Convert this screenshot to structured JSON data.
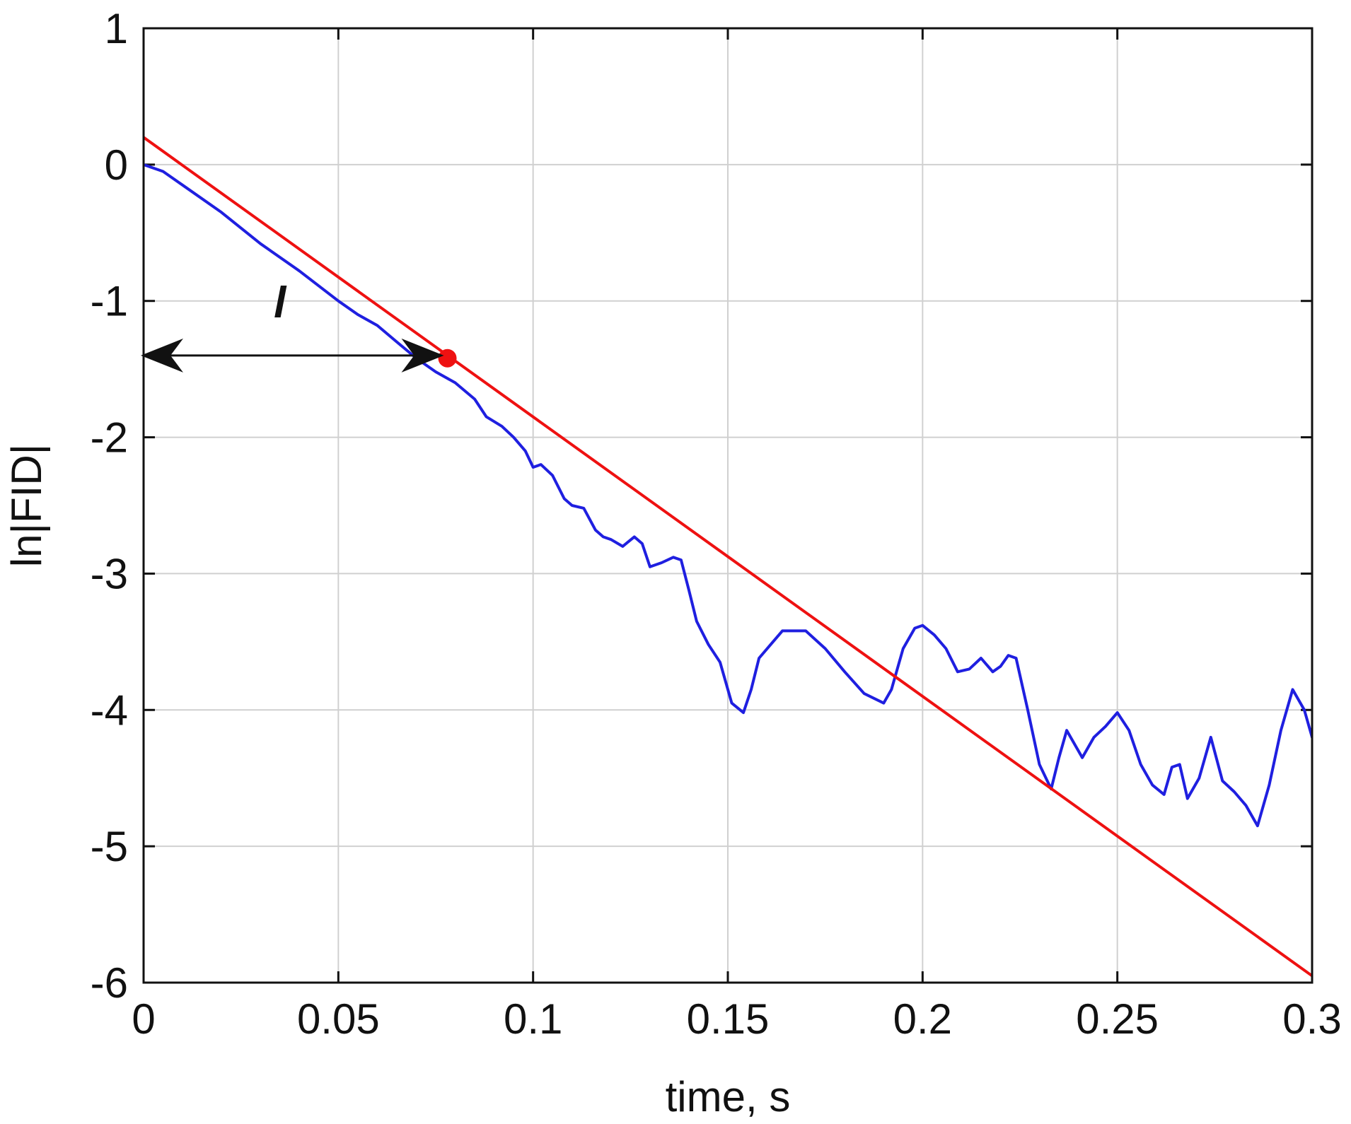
{
  "chart_data": {
    "type": "line",
    "title": "",
    "xlabel": "time, s",
    "ylabel": "ln|FID|",
    "xlim": [
      0,
      0.3
    ],
    "ylim": [
      -6,
      1
    ],
    "grid": true,
    "x_ticks": [
      0,
      0.05,
      0.1,
      0.15,
      0.2,
      0.25,
      0.3
    ],
    "x_tick_labels": [
      "0",
      "0.05",
      "0.1",
      "0.15",
      "0.2",
      "0.25",
      "0.3"
    ],
    "y_ticks": [
      1,
      0,
      -1,
      -2,
      -3,
      -4,
      -5,
      -6
    ],
    "y_tick_labels": [
      "1",
      "0",
      "-1",
      "-2",
      "-3",
      "-4",
      "-5",
      "-6"
    ],
    "series": [
      {
        "color": "#1f1fe0",
        "x": [
          0,
          0.005,
          0.01,
          0.02,
          0.03,
          0.04,
          0.05,
          0.055,
          0.06,
          0.065,
          0.07,
          0.075,
          0.08,
          0.085,
          0.088,
          0.092,
          0.095,
          0.098,
          0.1,
          0.102,
          0.105,
          0.108,
          0.11,
          0.113,
          0.116,
          0.118,
          0.12,
          0.123,
          0.126,
          0.128,
          0.13,
          0.133,
          0.136,
          0.138,
          0.14,
          0.142,
          0.145,
          0.148,
          0.151,
          0.154,
          0.156,
          0.158,
          0.161,
          0.164,
          0.167,
          0.17,
          0.175,
          0.18,
          0.185,
          0.19,
          0.192,
          0.195,
          0.198,
          0.2,
          0.203,
          0.206,
          0.209,
          0.212,
          0.215,
          0.218,
          0.22,
          0.222,
          0.224,
          0.227,
          0.23,
          0.233,
          0.235,
          0.237,
          0.239,
          0.241,
          0.244,
          0.247,
          0.25,
          0.253,
          0.256,
          0.259,
          0.262,
          0.264,
          0.266,
          0.268,
          0.271,
          0.274,
          0.277,
          0.28,
          0.283,
          0.286,
          0.289,
          0.292,
          0.295,
          0.298,
          0.3
        ],
        "y": [
          0,
          -0.05,
          -0.15,
          -0.35,
          -0.58,
          -0.78,
          -1.0,
          -1.1,
          -1.18,
          -1.3,
          -1.42,
          -1.52,
          -1.6,
          -1.72,
          -1.85,
          -1.92,
          -2.0,
          -2.1,
          -2.22,
          -2.2,
          -2.28,
          -2.45,
          -2.5,
          -2.52,
          -2.68,
          -2.73,
          -2.75,
          -2.8,
          -2.73,
          -2.78,
          -2.95,
          -2.92,
          -2.88,
          -2.9,
          -3.12,
          -3.35,
          -3.52,
          -3.65,
          -3.95,
          -4.02,
          -3.85,
          -3.62,
          -3.52,
          -3.42,
          -3.42,
          -3.42,
          -3.55,
          -3.72,
          -3.88,
          -3.95,
          -3.85,
          -3.55,
          -3.4,
          -3.38,
          -3.45,
          -3.55,
          -3.72,
          -3.7,
          -3.62,
          -3.72,
          -3.68,
          -3.6,
          -3.62,
          -4.0,
          -4.4,
          -4.58,
          -4.35,
          -4.15,
          -4.25,
          -4.35,
          -4.2,
          -4.12,
          -4.02,
          -4.15,
          -4.4,
          -4.55,
          -4.62,
          -4.42,
          -4.4,
          -4.65,
          -4.5,
          -4.2,
          -4.52,
          -4.6,
          -4.7,
          -4.85,
          -4.55,
          -4.15,
          -3.85,
          -4.0,
          -4.2
        ]
      },
      {
        "color": "#ee1111",
        "x": [
          0,
          0.3
        ],
        "y": [
          0.2,
          -5.95
        ]
      }
    ],
    "annotations": [
      {
        "type": "point",
        "x": 0.078,
        "y": -1.42,
        "color": "#ee1111"
      },
      {
        "type": "double-arrow",
        "x_start": 0,
        "x_end": 0.076,
        "y": -1.4,
        "color": "#111111"
      },
      {
        "type": "text",
        "text": "l",
        "x": 0.035,
        "y": -1.12
      }
    ]
  }
}
